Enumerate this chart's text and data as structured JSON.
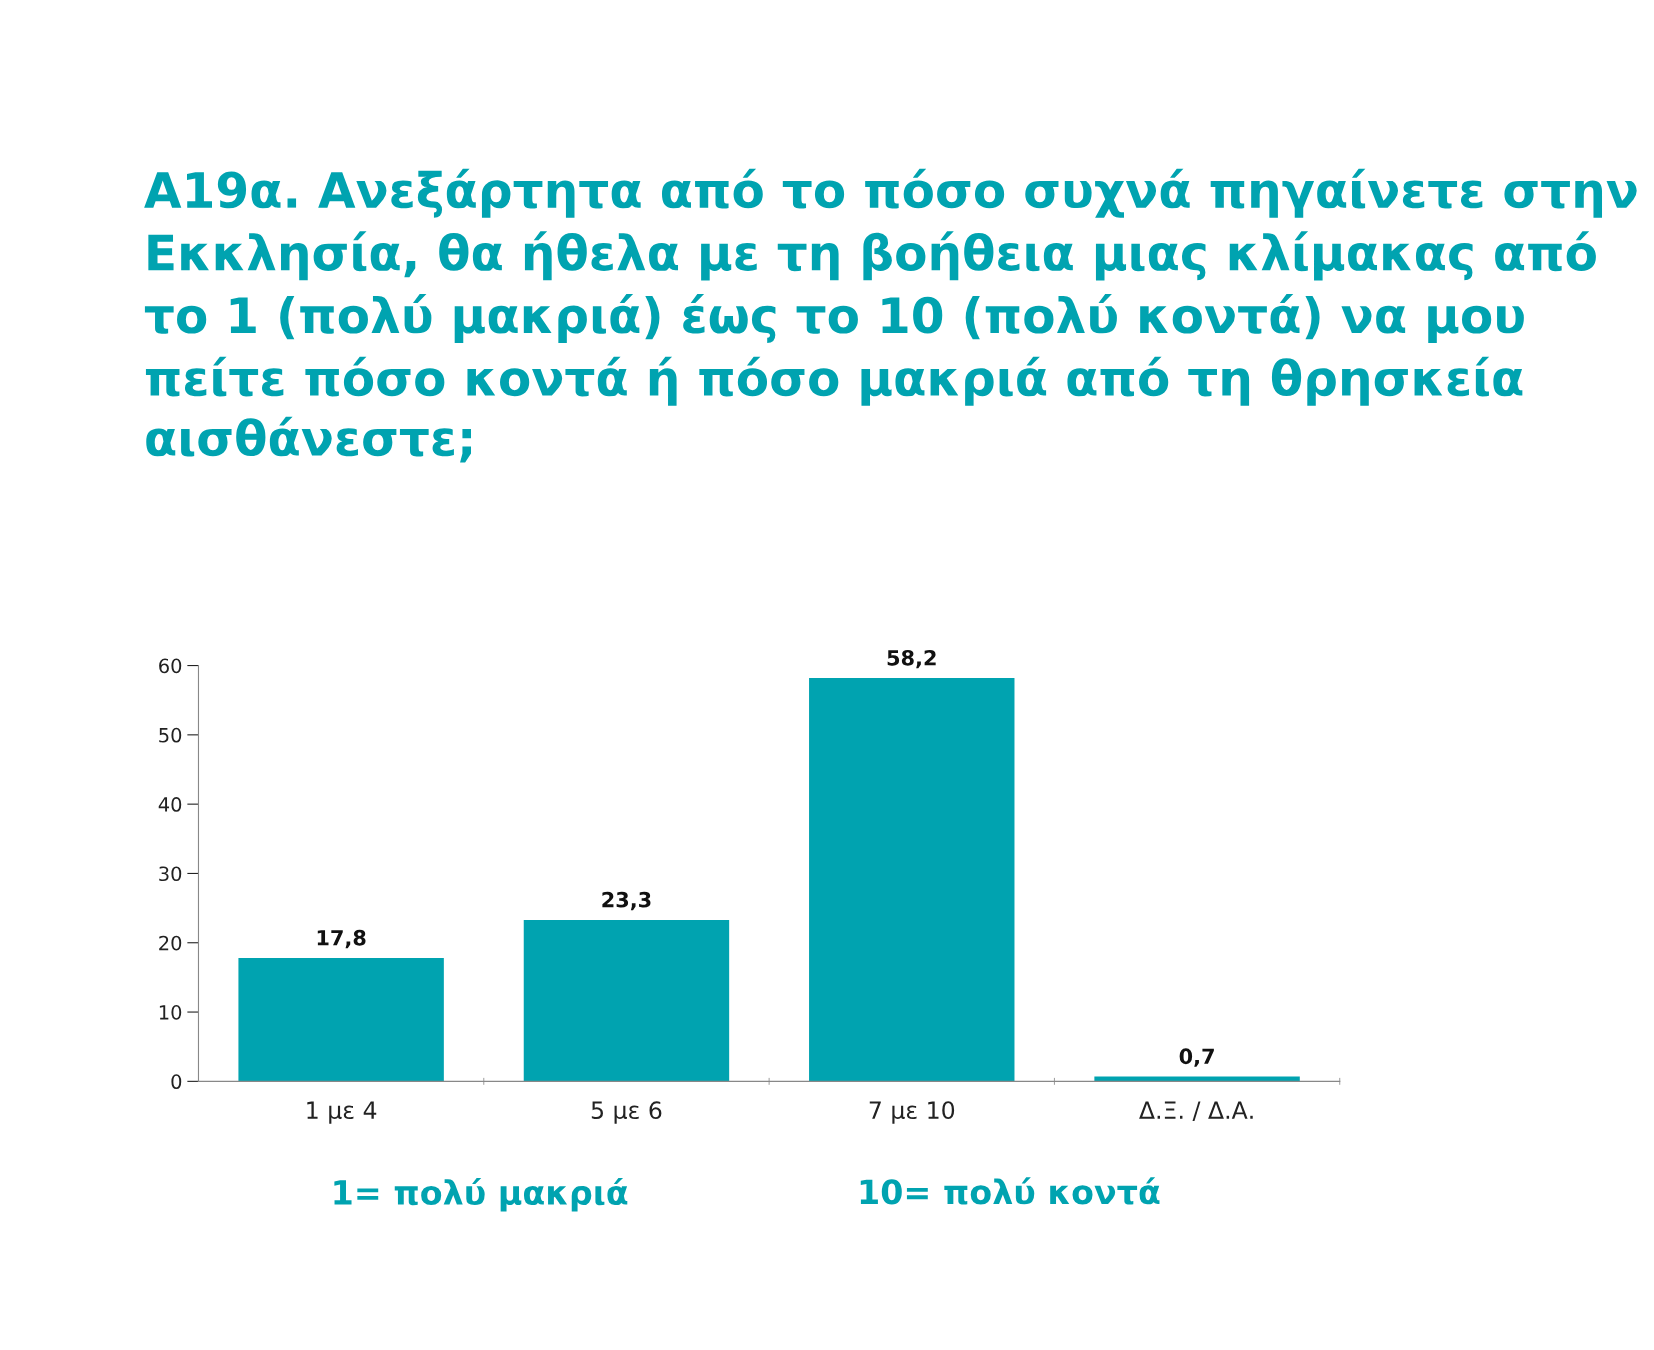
{
  "chart_data": {
    "type": "bar",
    "title": "Α19α. Ανεξάρτητα από το πόσο συχνά πηγαίνετε στην Εκκλησία, θα ήθελα με τη βοήθεια μιας κλίμακας από το 1 (πολύ μακριά) έως το 10 (πολύ κοντά) να μου πείτε πόσο κοντά ή πόσο μακριά από τη θρησκεία αισθάνεστε;",
    "categories": [
      "1 με 4",
      "5 με 6",
      "7 με 10",
      "Δ.Ξ. / Δ.Α."
    ],
    "values": [
      17.8,
      23.3,
      58.2,
      0.7
    ],
    "value_labels": [
      "17,8",
      "23,3",
      "58,2",
      "0,7"
    ],
    "color": "#00a3b0",
    "ylim": [
      0,
      60
    ],
    "yticks": [
      0,
      10,
      20,
      30,
      40,
      50,
      60
    ],
    "grid": false,
    "legend": false,
    "annotations": [
      "1= πολύ μακριά",
      "10= πολύ κοντά"
    ]
  }
}
